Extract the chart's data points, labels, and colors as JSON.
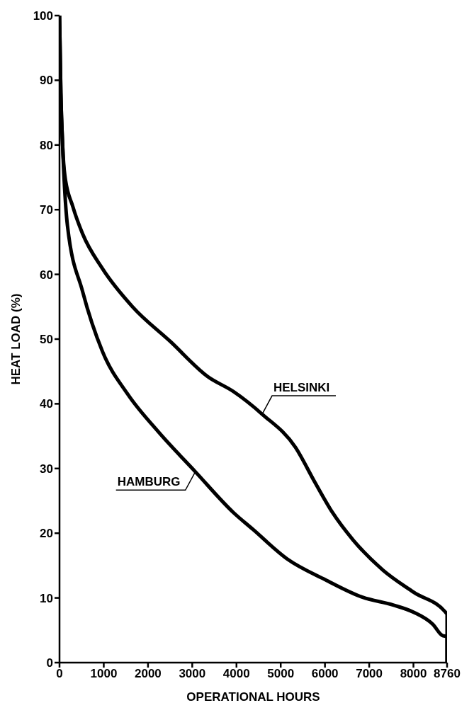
{
  "chart_data": {
    "type": "line",
    "xlabel": "OPERATIONAL HOURS",
    "ylabel": "HEAT LOAD (%)",
    "xlim": [
      0,
      8760
    ],
    "xticks": [
      0,
      1000,
      2000,
      3000,
      4000,
      5000,
      6000,
      7000,
      8000,
      8760
    ],
    "ylim": [
      0,
      100
    ],
    "yticks": [
      0,
      10,
      20,
      30,
      40,
      50,
      60,
      70,
      80,
      90,
      100
    ],
    "grid": false,
    "legend": false,
    "marker": "none",
    "line_style": "solid",
    "series": [
      {
        "name": "HELSINKI",
        "color": "#000000",
        "x": [
          0,
          30,
          70,
          122,
          300,
          520,
          970,
          1650,
          2510,
          3350,
          3930,
          4580,
          5330,
          5770,
          6170,
          6630,
          7310,
          8000,
          8760,
          8760
        ],
        "values": [
          100,
          88,
          80,
          75.2,
          70.5,
          66.3,
          60.9,
          55,
          49.6,
          44.2,
          41.9,
          38.4,
          33.3,
          27.9,
          23.2,
          19,
          14.3,
          10.9,
          7.5,
          0
        ]
      },
      {
        "name": "HAMBURG",
        "color": "#000000",
        "x": [
          0,
          30,
          70,
          180,
          520,
          970,
          1540,
          2230,
          3070,
          3930,
          4370,
          5150,
          6010,
          6850,
          7540,
          8000,
          8440,
          8650,
          8760,
          8760
        ],
        "values": [
          100,
          88,
          80,
          67.5,
          57.4,
          48.1,
          41.5,
          35.7,
          29.5,
          23.2,
          20.6,
          16,
          12.8,
          10.1,
          8.9,
          7.8,
          5.9,
          4.2,
          4,
          0
        ]
      }
    ]
  }
}
